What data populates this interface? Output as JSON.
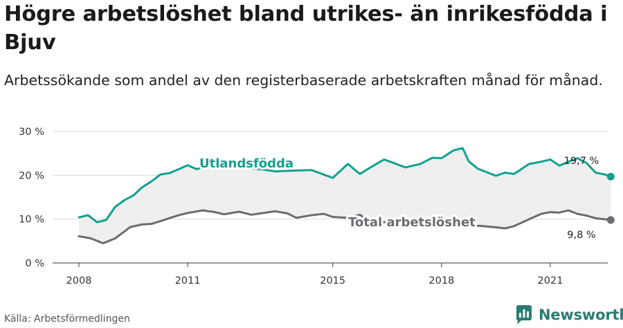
{
  "header": {
    "title": "Högre arbetslöshet bland utrikes- än inrikesfödda i Bjuv",
    "subtitle": "Arbetssökande som andel av den registerbaserade arbetskraften månad för månad."
  },
  "footer": {
    "source": "Källa: Arbetsförmedlingen",
    "brand": "Newsworthy"
  },
  "colors": {
    "utlandsfodda": "#12a08f",
    "total": "#6b6b73",
    "band": "#efefef",
    "grid": "#d9d9d9",
    "brand": "#2a7d72"
  },
  "icons": {
    "brand_logo": "bar-chart-logo-icon"
  },
  "chart_data": {
    "type": "line",
    "title": "Högre arbetslöshet bland utrikes- än inrikesfödda i Bjuv",
    "subtitle": "Arbetssökande som andel av den registerbaserade arbetskraften månad för månad.",
    "xlabel": "",
    "ylabel": "",
    "x_ticks": [
      "2008",
      "2011",
      "2015",
      "2018",
      "2021"
    ],
    "y_ticks": [
      "0 %",
      "10 %",
      "20 %",
      "30 %"
    ],
    "ylim": [
      0,
      30
    ],
    "grid": true,
    "area_between_series": true,
    "x_start": "2008-01",
    "x_end": "2022-12",
    "end_date": "2022-09",
    "series": [
      {
        "name": "Utlandsfödda",
        "end_label": "19,7 %",
        "points": [
          [
            "2008-01",
            10.4
          ],
          [
            "2008-04",
            10.9
          ],
          [
            "2008-07",
            9.3
          ],
          [
            "2008-10",
            9.8
          ],
          [
            "2009-01",
            12.8
          ],
          [
            "2009-04",
            14.3
          ],
          [
            "2009-07",
            15.4
          ],
          [
            "2009-10",
            17.3
          ],
          [
            "2010-01",
            18.6
          ],
          [
            "2010-04",
            20.2
          ],
          [
            "2010-07",
            20.5
          ],
          [
            "2010-10",
            21.4
          ],
          [
            "2011-01",
            22.3
          ],
          [
            "2011-04",
            21.4
          ],
          [
            "2011-07",
            22.1
          ],
          [
            "2011-10",
            22.4
          ],
          [
            "2012-01",
            22.2
          ],
          [
            "2012-06",
            21.8
          ],
          [
            "2013-01",
            21.4
          ],
          [
            "2013-06",
            20.9
          ],
          [
            "2014-01",
            21.1
          ],
          [
            "2014-06",
            21.2
          ],
          [
            "2015-01",
            19.4
          ],
          [
            "2015-06",
            22.6
          ],
          [
            "2015-10",
            20.3
          ],
          [
            "2016-01",
            21.6
          ],
          [
            "2016-06",
            23.6
          ],
          [
            "2016-10",
            22.6
          ],
          [
            "2017-01",
            21.8
          ],
          [
            "2017-06",
            22.6
          ],
          [
            "2017-10",
            24.0
          ],
          [
            "2018-01",
            23.9
          ],
          [
            "2018-05",
            25.7
          ],
          [
            "2018-08",
            26.2
          ],
          [
            "2018-10",
            23.2
          ],
          [
            "2019-01",
            21.5
          ],
          [
            "2019-07",
            19.9
          ],
          [
            "2019-10",
            20.6
          ],
          [
            "2020-01",
            20.3
          ],
          [
            "2020-06",
            22.6
          ],
          [
            "2020-10",
            23.1
          ],
          [
            "2021-01",
            23.6
          ],
          [
            "2021-04",
            22.2
          ],
          [
            "2021-07",
            23.1
          ],
          [
            "2021-10",
            23.9
          ],
          [
            "2022-01",
            22.8
          ],
          [
            "2022-04",
            20.6
          ],
          [
            "2022-07",
            20.2
          ],
          [
            "2022-09",
            19.7
          ]
        ]
      },
      {
        "name": "Total arbetslöshet",
        "end_label": "9,8 %",
        "points": [
          [
            "2008-01",
            6.1
          ],
          [
            "2008-05",
            5.6
          ],
          [
            "2008-09",
            4.5
          ],
          [
            "2009-01",
            5.6
          ],
          [
            "2009-06",
            8.2
          ],
          [
            "2009-10",
            8.8
          ],
          [
            "2010-01",
            8.9
          ],
          [
            "2010-06",
            10.0
          ],
          [
            "2010-10",
            10.9
          ],
          [
            "2011-01",
            11.4
          ],
          [
            "2011-06",
            12.0
          ],
          [
            "2011-10",
            11.6
          ],
          [
            "2012-01",
            11.1
          ],
          [
            "2012-06",
            11.7
          ],
          [
            "2012-10",
            11.0
          ],
          [
            "2013-01",
            11.3
          ],
          [
            "2013-06",
            11.8
          ],
          [
            "2013-10",
            11.3
          ],
          [
            "2014-01",
            10.3
          ],
          [
            "2014-06",
            10.9
          ],
          [
            "2014-10",
            11.2
          ],
          [
            "2015-01",
            10.5
          ],
          [
            "2015-06",
            10.3
          ],
          [
            "2015-10",
            11.0
          ],
          [
            "2016-01",
            9.5
          ],
          [
            "2016-06",
            9.3
          ],
          [
            "2016-10",
            9.0
          ],
          [
            "2017-01",
            8.9
          ],
          [
            "2017-06",
            8.8
          ],
          [
            "2017-10",
            8.6
          ],
          [
            "2018-01",
            8.7
          ],
          [
            "2018-06",
            8.5
          ],
          [
            "2018-10",
            8.3
          ],
          [
            "2019-01",
            8.5
          ],
          [
            "2019-06",
            8.2
          ],
          [
            "2019-10",
            7.9
          ],
          [
            "2020-01",
            8.4
          ],
          [
            "2020-06",
            10.0
          ],
          [
            "2020-10",
            11.2
          ],
          [
            "2021-01",
            11.6
          ],
          [
            "2021-04",
            11.5
          ],
          [
            "2021-07",
            12.0
          ],
          [
            "2021-10",
            11.2
          ],
          [
            "2022-01",
            10.8
          ],
          [
            "2022-04",
            10.2
          ],
          [
            "2022-09",
            9.8
          ]
        ]
      }
    ]
  }
}
